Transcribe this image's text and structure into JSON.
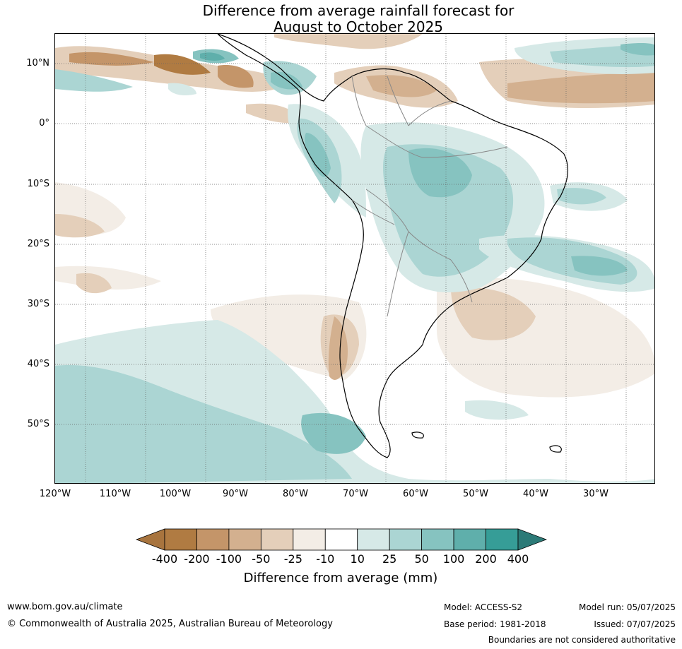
{
  "title": {
    "line1": "Difference from average rainfall forecast for",
    "line2": "August to October 2025"
  },
  "map": {
    "lat_labels": [
      "10°N",
      "0°",
      "10°S",
      "20°S",
      "30°S",
      "40°S",
      "50°S"
    ],
    "lon_labels": [
      "120°W",
      "110°W",
      "100°W",
      "90°W",
      "80°W",
      "70°W",
      "60°W",
      "50°W",
      "40°W",
      "30°W"
    ]
  },
  "colorbar": {
    "ticks": [
      "-400",
      "-200",
      "-100",
      "-50",
      "-25",
      "-10",
      "10",
      "25",
      "50",
      "100",
      "200",
      "400"
    ],
    "colors": [
      "#a8743e",
      "#b07b42",
      "#c49569",
      "#d3b08f",
      "#e4cfba",
      "#f3ede6",
      "#ffffff",
      "#d6e9e7",
      "#abd5d3",
      "#86c3c0",
      "#5fafab",
      "#369d97",
      "#2c7a77"
    ],
    "label": "Difference from average (mm)"
  },
  "footer": {
    "website": "www.bom.gov.au/climate",
    "copyright": "© Commonwealth of Australia 2025, Australian Bureau of Meteorology",
    "model": "Model: ACCESS-S2",
    "base_period": "Base period: 1981-2018",
    "model_run": "Model run: 05/07/2025",
    "issued": "Issued: 07/07/2025",
    "disclaimer": "Boundaries are not considered authoritative"
  }
}
